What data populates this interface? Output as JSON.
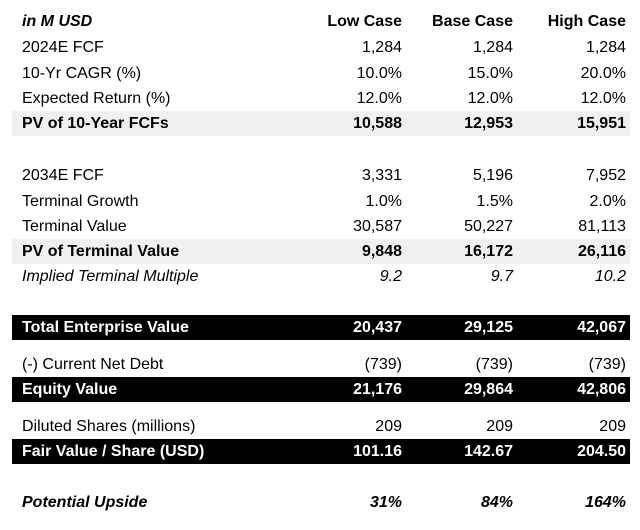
{
  "header": {
    "label": "in M USD",
    "low": "Low Case",
    "base": "Base Case",
    "high": "High Case"
  },
  "rows": [
    {
      "label": "2024E FCF",
      "low": "1,284",
      "base": "1,284",
      "high": "1,284"
    },
    {
      "label": "10-Yr CAGR (%)",
      "low": "10.0%",
      "base": "15.0%",
      "high": "20.0%"
    },
    {
      "label": "Expected Return (%)",
      "low": "12.0%",
      "base": "12.0%",
      "high": "12.0%"
    },
    {
      "label": "PV of 10-Year FCFs",
      "low": "10,588",
      "base": "12,953",
      "high": "15,951"
    },
    {
      "label": "2034E FCF",
      "low": "3,331",
      "base": "5,196",
      "high": "7,952"
    },
    {
      "label": "Terminal Growth",
      "low": "1.0%",
      "base": "1.5%",
      "high": "2.0%"
    },
    {
      "label": "Terminal Value",
      "low": "30,587",
      "base": "50,227",
      "high": "81,113"
    },
    {
      "label": "PV of Terminal Value",
      "low": "9,848",
      "base": "16,172",
      "high": "26,116"
    },
    {
      "label": "Implied Terminal Multiple",
      "low": "9.2",
      "base": "9.7",
      "high": "10.2"
    },
    {
      "label": "Total Enterprise Value",
      "low": "20,437",
      "base": "29,125",
      "high": "42,067"
    },
    {
      "label": "(-) Current Net Debt",
      "low": "(739)",
      "base": "(739)",
      "high": "(739)"
    },
    {
      "label": "Equity Value",
      "low": "21,176",
      "base": "29,864",
      "high": "42,806"
    },
    {
      "label": "Diluted Shares (millions)",
      "low": "209",
      "base": "209",
      "high": "209"
    },
    {
      "label": "Fair Value / Share (USD)",
      "low": "101.16",
      "base": "142.67",
      "high": "204.50"
    },
    {
      "label": "Potential Upside",
      "low": "31%",
      "base": "84%",
      "high": "164%"
    }
  ]
}
